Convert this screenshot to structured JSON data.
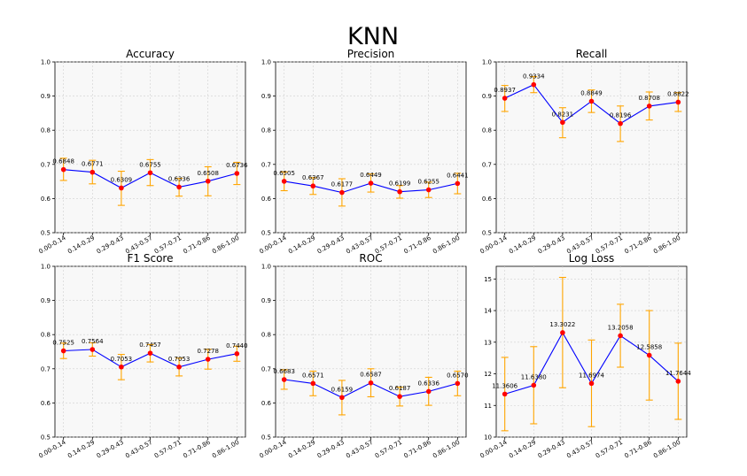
{
  "title": "KNN",
  "chart_data": [
    {
      "type": "line",
      "title": "Accuracy",
      "categories": [
        "0.00-0.14",
        "0.14-0.29",
        "0.29-0.43",
        "0.43-0.57",
        "0.57-0.71",
        "0.71-0.86",
        "0.86-1.00"
      ],
      "values": [
        0.6848,
        0.6771,
        0.6309,
        0.6755,
        0.6336,
        0.6508,
        0.6736
      ],
      "labels": [
        "0.6848",
        "0.6771",
        "0.6309",
        "0.6755",
        "0.6336",
        "0.6508",
        "0.6736"
      ],
      "err_low": [
        0.653,
        0.643,
        0.58,
        0.638,
        0.607,
        0.608,
        0.641
      ],
      "err_high": [
        0.718,
        0.712,
        0.68,
        0.714,
        0.659,
        0.693,
        0.706
      ],
      "ylim": [
        0.5,
        1.0
      ],
      "yticks": [
        "0.5",
        "0.6",
        "0.7",
        "0.8",
        "0.9",
        "1.0"
      ],
      "grid": true
    },
    {
      "type": "line",
      "title": "Precision",
      "categories": [
        "0.00-0.14",
        "0.14-0.29",
        "0.29-0.43",
        "0.43-0.57",
        "0.57-0.71",
        "0.71-0.86",
        "0.86-1.00"
      ],
      "values": [
        0.6505,
        0.6367,
        0.6177,
        0.6449,
        0.6199,
        0.6255,
        0.6441
      ],
      "labels": [
        "0.6505",
        "0.6367",
        "0.6177",
        "0.6449",
        "0.6199",
        "0.6255",
        "0.6441"
      ],
      "err_low": [
        0.623,
        0.612,
        0.578,
        0.619,
        0.601,
        0.603,
        0.614
      ],
      "err_high": [
        0.678,
        0.661,
        0.658,
        0.672,
        0.638,
        0.648,
        0.674
      ],
      "ylim": [
        0.5,
        1.0
      ],
      "yticks": [
        "0.5",
        "0.6",
        "0.7",
        "0.8",
        "0.9",
        "1.0"
      ],
      "grid": true
    },
    {
      "type": "line",
      "title": "Recall",
      "categories": [
        "0.00-0.14",
        "0.14-0.29",
        "0.29-0.43",
        "0.43-0.57",
        "0.57-0.71",
        "0.71-0.86",
        "0.86-1.00"
      ],
      "values": [
        0.8937,
        0.9334,
        0.8231,
        0.8849,
        0.8196,
        0.8708,
        0.8822
      ],
      "labels": [
        "0.8937",
        "0.9334",
        "0.8231",
        "0.8849",
        "0.8196",
        "0.8708",
        "0.8822"
      ],
      "err_low": [
        0.855,
        0.91,
        0.778,
        0.852,
        0.767,
        0.83,
        0.855
      ],
      "err_high": [
        0.931,
        0.957,
        0.866,
        0.918,
        0.871,
        0.912,
        0.91
      ],
      "ylim": [
        0.5,
        1.0
      ],
      "yticks": [
        "0.5",
        "0.6",
        "0.7",
        "0.8",
        "0.9",
        "1.0"
      ],
      "grid": true
    },
    {
      "type": "line",
      "title": "F1 Score",
      "categories": [
        "0.00-0.14",
        "0.14-0.29",
        "0.29-0.43",
        "0.43-0.57",
        "0.57-0.71",
        "0.71-0.86",
        "0.86-1.00"
      ],
      "values": [
        0.7525,
        0.7564,
        0.7053,
        0.7457,
        0.7053,
        0.7278,
        0.744
      ],
      "labels": [
        "0.7525",
        "0.7564",
        "0.7053",
        "0.7457",
        "0.7053",
        "0.7278",
        "0.7440"
      ],
      "err_low": [
        0.73,
        0.737,
        0.668,
        0.72,
        0.679,
        0.699,
        0.722
      ],
      "err_high": [
        0.775,
        0.776,
        0.742,
        0.771,
        0.731,
        0.757,
        0.766
      ],
      "ylim": [
        0.5,
        1.0
      ],
      "yticks": [
        "0.5",
        "0.6",
        "0.7",
        "0.8",
        "0.9",
        "1.0"
      ],
      "grid": true
    },
    {
      "type": "line",
      "title": "ROC",
      "categories": [
        "0.00-0.14",
        "0.14-0.29",
        "0.29-0.43",
        "0.43-0.57",
        "0.57-0.71",
        "0.71-0.86",
        "0.86-1.00"
      ],
      "values": [
        0.6683,
        0.6571,
        0.6159,
        0.6587,
        0.6187,
        0.6336,
        0.657
      ],
      "labels": [
        "0.6683",
        "0.6571",
        "0.6159",
        "0.6587",
        "0.6187",
        "0.6336",
        "0.6570"
      ],
      "err_low": [
        0.64,
        0.621,
        0.565,
        0.618,
        0.591,
        0.593,
        0.621
      ],
      "err_high": [
        0.697,
        0.693,
        0.666,
        0.7,
        0.646,
        0.675,
        0.693
      ],
      "ylim": [
        0.5,
        1.0
      ],
      "yticks": [
        "0.5",
        "0.6",
        "0.7",
        "0.8",
        "0.9",
        "1.0"
      ],
      "grid": true
    },
    {
      "type": "line",
      "title": "Log Loss",
      "categories": [
        "0.00-0.14",
        "0.14-0.29",
        "0.29-0.43",
        "0.43-0.57",
        "0.57-0.71",
        "0.71-0.86",
        "0.86-1.00"
      ],
      "values": [
        11.3606,
        11.638,
        13.3022,
        11.6974,
        13.2058,
        12.5858,
        11.7644
      ],
      "labels": [
        "11.3606",
        "11.6380",
        "13.3022",
        "11.6974",
        "13.2058",
        "12.5858",
        "11.7644"
      ],
      "err_low": [
        10.2,
        10.42,
        11.56,
        10.33,
        12.21,
        11.17,
        10.56
      ],
      "err_high": [
        12.52,
        12.86,
        15.05,
        13.07,
        14.2,
        14.0,
        12.97
      ],
      "ylim": [
        10,
        15.4
      ],
      "yticks": [
        "10",
        "11",
        "12",
        "13",
        "14",
        "15"
      ],
      "grid": true
    }
  ]
}
